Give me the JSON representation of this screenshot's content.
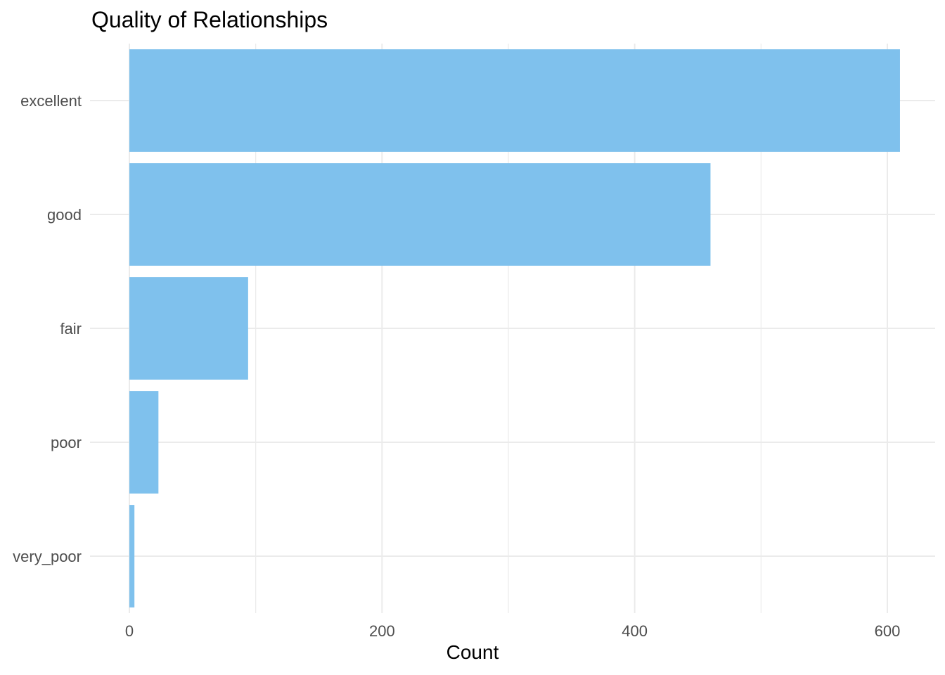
{
  "chart_data": {
    "type": "bar",
    "orientation": "horizontal",
    "title": "Quality of Relationships",
    "xlabel": "Count",
    "ylabel": "",
    "categories": [
      "excellent",
      "good",
      "fair",
      "poor",
      "very_poor"
    ],
    "values": [
      610,
      460,
      94,
      23,
      4
    ],
    "xlim": [
      0,
      640
    ],
    "xticks": [
      0,
      200,
      400,
      600
    ],
    "grid": true,
    "bar_color": "#7fc1ed",
    "grid_color": "#ebebeb"
  }
}
